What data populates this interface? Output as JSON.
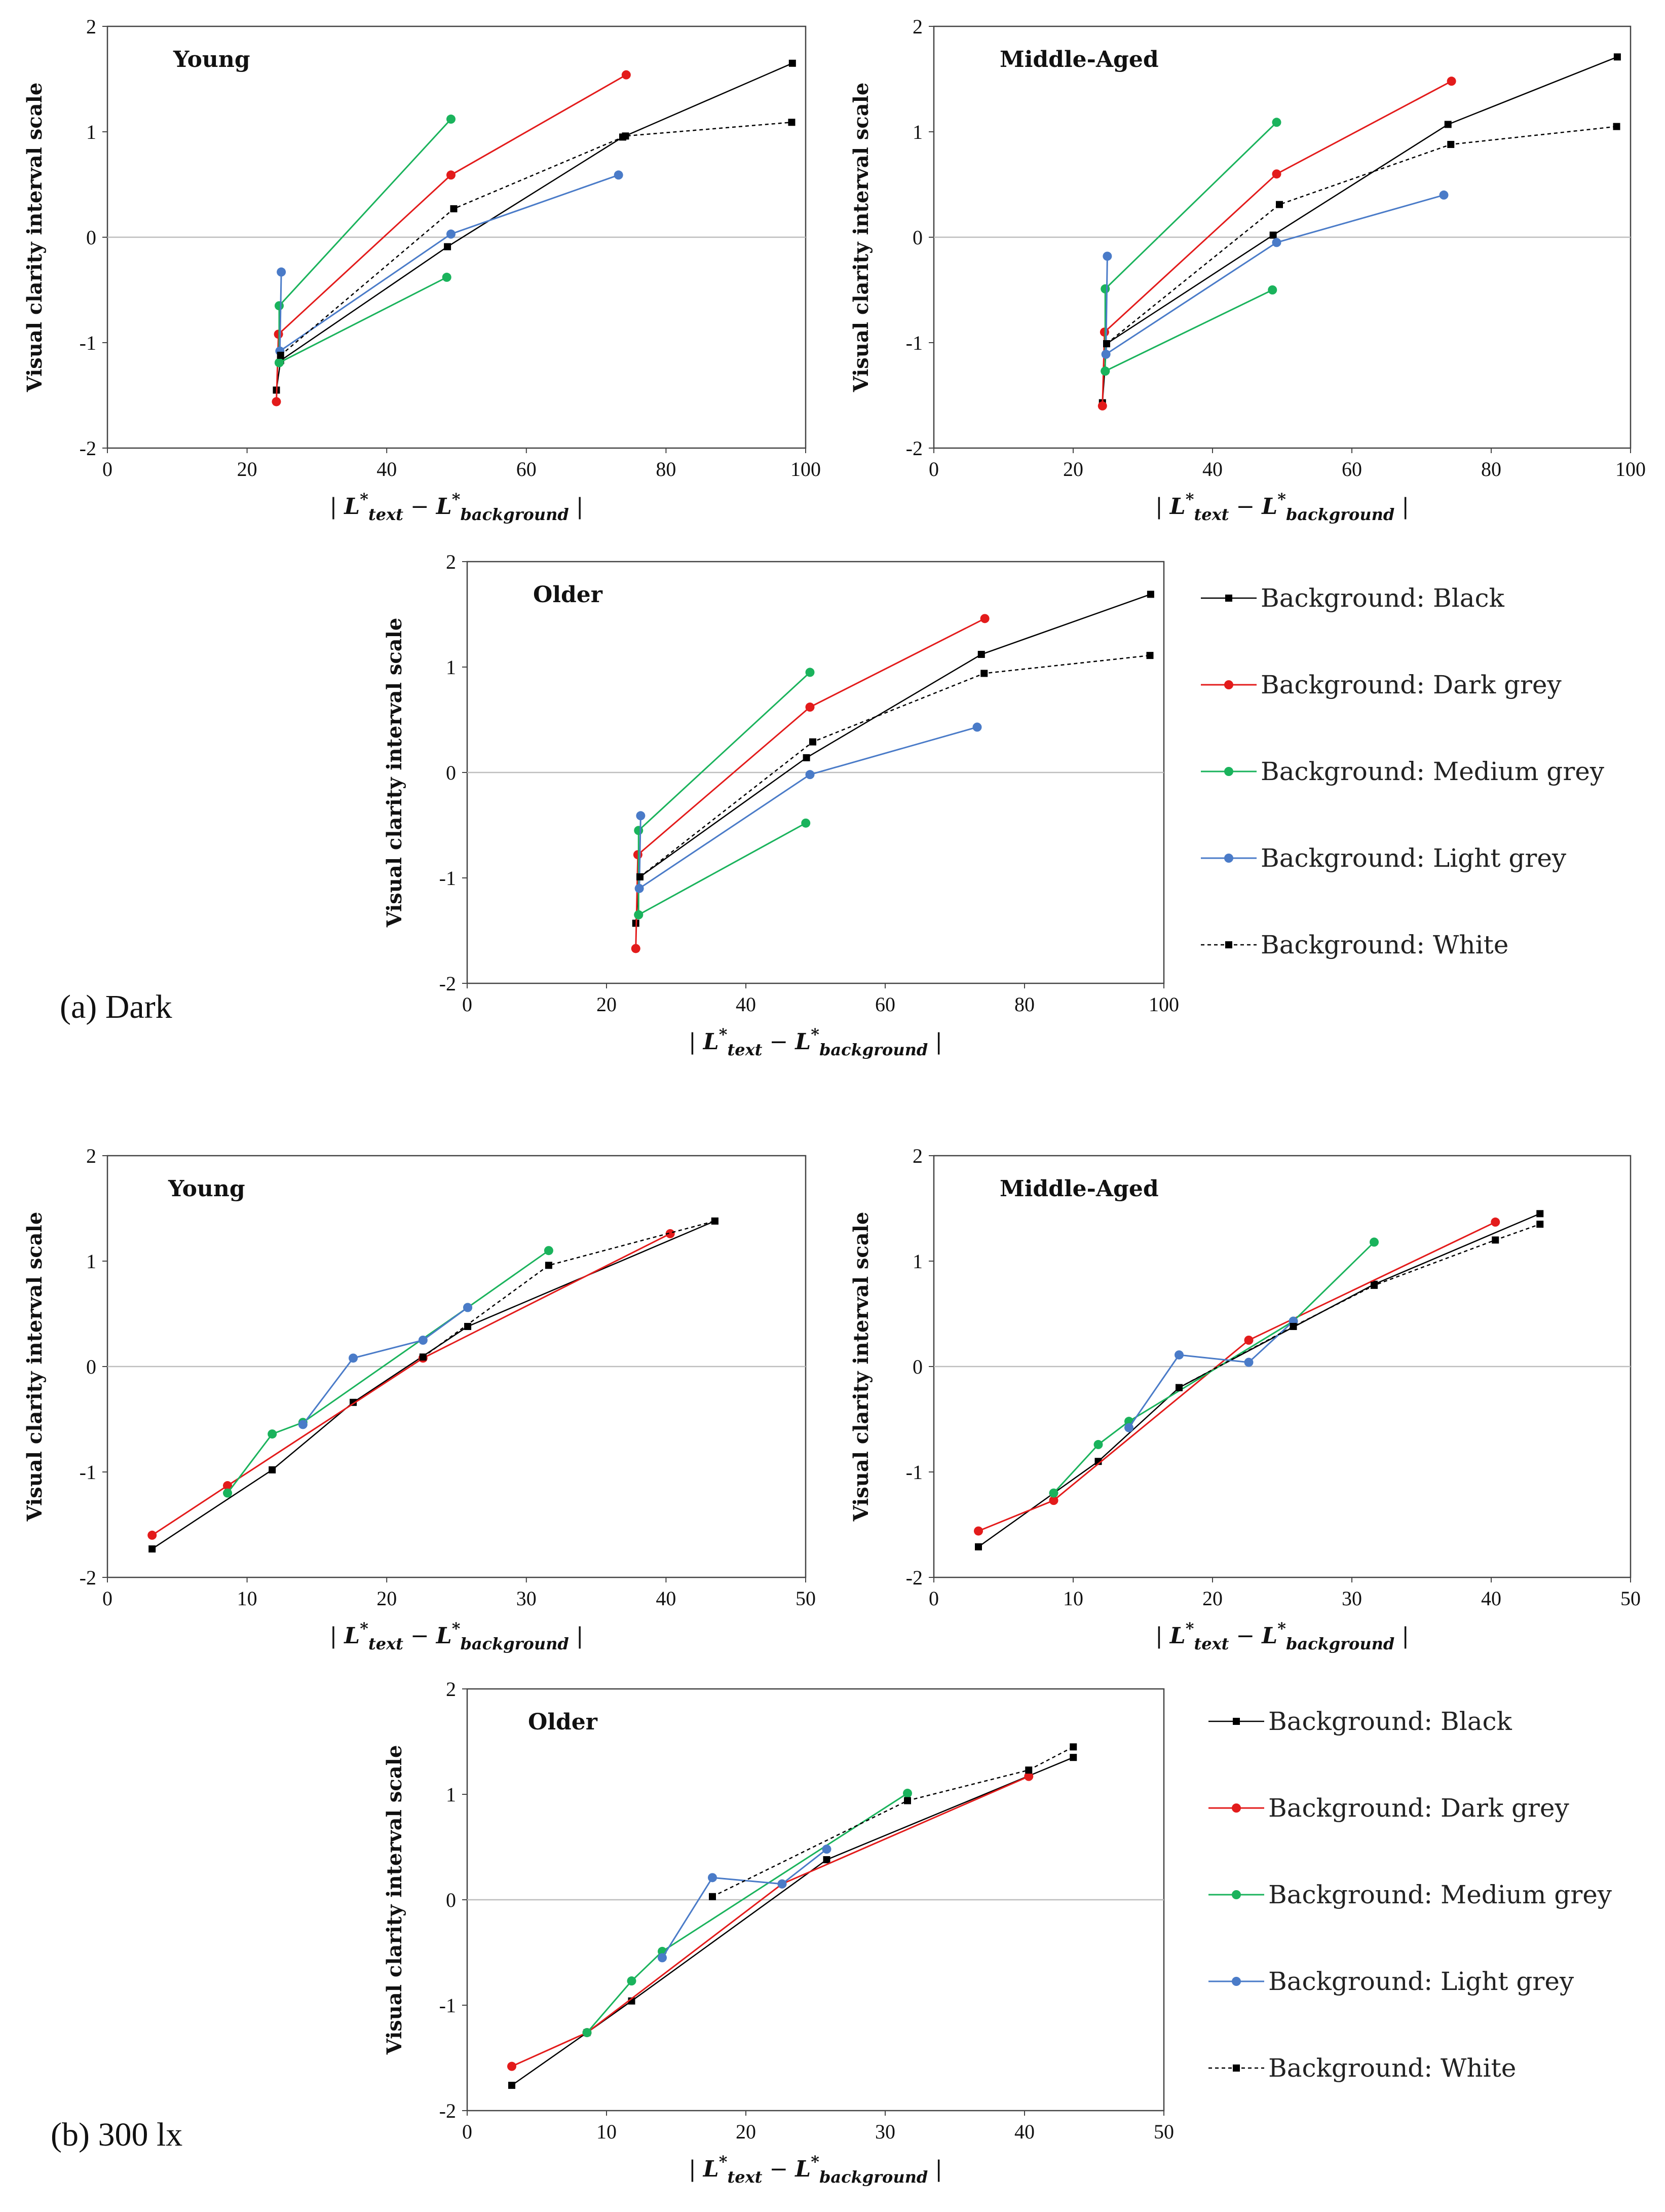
{
  "sections": [
    {
      "label": "(a) Dark"
    },
    {
      "label": "(b) 300 lx"
    }
  ],
  "legend": {
    "items": [
      {
        "label": "Background: Black",
        "color": "#000000",
        "marker": "square",
        "dashed": false
      },
      {
        "label": "Background: Dark grey",
        "color": "#e31b1b",
        "marker": "circle",
        "dashed": false
      },
      {
        "label": "Background: Medium grey",
        "color": "#1ab35c",
        "marker": "circle",
        "dashed": false
      },
      {
        "label": "Background: Light grey",
        "color": "#4a7bc8",
        "marker": "circle",
        "dashed": false
      },
      {
        "label": "Background: White",
        "color": "#000000",
        "marker": "square",
        "dashed": true
      }
    ]
  },
  "axes": {
    "ylabel": "Visual clarity interval scale",
    "xlabel_prefix": "| ",
    "xlabel_L1": "L",
    "xlabel_sub1": "text",
    "xlabel_minus": " − ",
    "xlabel_L2": "L",
    "xlabel_sub2": "background",
    "xlabel_suffix": " |",
    "star": "*"
  },
  "chart_data": [
    {
      "type": "line",
      "section": "(a) Dark",
      "title": "Young",
      "xlim": [
        0,
        100
      ],
      "ylim": [
        -2,
        2
      ],
      "xticks": [
        0,
        20,
        40,
        60,
        80,
        100
      ],
      "yticks": [
        -2,
        -1,
        0,
        1,
        2
      ],
      "series": [
        {
          "name": "Background: Black",
          "points": [
            [
              24.2,
              -1.45
            ],
            [
              24.8,
              -1.17
            ],
            [
              48.7,
              -0.09
            ],
            [
              73.8,
              0.95
            ],
            [
              98.1,
              1.65
            ]
          ]
        },
        {
          "name": "Background: Dark grey",
          "points": [
            [
              24.2,
              -1.56
            ],
            [
              24.5,
              -0.92
            ],
            [
              49.2,
              0.59
            ],
            [
              74.3,
              1.54
            ]
          ]
        },
        {
          "name": "Background: Medium grey",
          "points": [
            [
              24.6,
              -1.19
            ],
            [
              24.6,
              -0.65
            ],
            [
              49.2,
              1.12
            ]
          ],
          "extra": [
            [
              24.6,
              -1.19
            ],
            [
              48.6,
              -0.38
            ]
          ]
        },
        {
          "name": "Background: Light grey",
          "points": [
            [
              24.9,
              -0.33
            ],
            [
              24.7,
              -1.08
            ],
            [
              49.2,
              0.03
            ],
            [
              73.2,
              0.59
            ]
          ]
        },
        {
          "name": "Background: White",
          "points": [
            [
              24.8,
              -1.12
            ],
            [
              49.6,
              0.27
            ],
            [
              74.2,
              0.96
            ],
            [
              98.0,
              1.09
            ]
          ]
        }
      ]
    },
    {
      "type": "line",
      "section": "(a) Dark",
      "title": "Middle-Aged",
      "xlim": [
        0,
        100
      ],
      "ylim": [
        -2,
        2
      ],
      "xticks": [
        0,
        20,
        40,
        60,
        80,
        100
      ],
      "yticks": [
        -2,
        -1,
        0,
        1,
        2
      ],
      "series": [
        {
          "name": "Background: Black",
          "points": [
            [
              24.2,
              -1.57
            ],
            [
              24.8,
              -1.01
            ],
            [
              48.7,
              0.02
            ],
            [
              73.8,
              1.07
            ],
            [
              98.1,
              1.71
            ]
          ]
        },
        {
          "name": "Background: Dark grey",
          "points": [
            [
              24.2,
              -1.6
            ],
            [
              24.5,
              -0.9
            ],
            [
              49.2,
              0.6
            ],
            [
              74.3,
              1.48
            ]
          ]
        },
        {
          "name": "Background: Medium grey",
          "points": [
            [
              24.6,
              -1.27
            ],
            [
              24.6,
              -0.49
            ],
            [
              49.2,
              1.09
            ]
          ],
          "extra": [
            [
              24.6,
              -1.27
            ],
            [
              48.6,
              -0.5
            ]
          ]
        },
        {
          "name": "Background: Light grey",
          "points": [
            [
              24.9,
              -0.18
            ],
            [
              24.7,
              -1.11
            ],
            [
              49.2,
              -0.05
            ],
            [
              73.2,
              0.4
            ]
          ]
        },
        {
          "name": "Background: White",
          "points": [
            [
              24.8,
              -1.01
            ],
            [
              49.6,
              0.31
            ],
            [
              74.2,
              0.88
            ],
            [
              98.0,
              1.05
            ]
          ]
        }
      ]
    },
    {
      "type": "line",
      "section": "(a) Dark",
      "title": "Older",
      "xlim": [
        0,
        100
      ],
      "ylim": [
        -2,
        2
      ],
      "xticks": [
        0,
        20,
        40,
        60,
        80,
        100
      ],
      "yticks": [
        -2,
        -1,
        0,
        1,
        2
      ],
      "series": [
        {
          "name": "Background: Black",
          "points": [
            [
              24.2,
              -1.43
            ],
            [
              24.8,
              -0.99
            ],
            [
              48.7,
              0.14
            ],
            [
              73.8,
              1.12
            ],
            [
              98.1,
              1.69
            ]
          ]
        },
        {
          "name": "Background: Dark grey",
          "points": [
            [
              24.2,
              -1.67
            ],
            [
              24.5,
              -0.78
            ],
            [
              49.2,
              0.62
            ],
            [
              74.3,
              1.46
            ]
          ]
        },
        {
          "name": "Background: Medium grey",
          "points": [
            [
              24.6,
              -1.35
            ],
            [
              24.6,
              -0.55
            ],
            [
              49.2,
              0.95
            ]
          ],
          "extra": [
            [
              24.6,
              -1.35
            ],
            [
              48.6,
              -0.48
            ]
          ]
        },
        {
          "name": "Background: Light grey",
          "points": [
            [
              24.9,
              -0.41
            ],
            [
              24.7,
              -1.1
            ],
            [
              49.2,
              -0.02
            ],
            [
              73.2,
              0.43
            ]
          ]
        },
        {
          "name": "Background: White",
          "points": [
            [
              24.8,
              -0.99
            ],
            [
              49.6,
              0.29
            ],
            [
              74.2,
              0.94
            ],
            [
              98.0,
              1.11
            ]
          ]
        }
      ]
    },
    {
      "type": "line",
      "section": "(b) 300 lx",
      "title": "Young",
      "xlim": [
        0,
        50
      ],
      "ylim": [
        -2,
        2
      ],
      "xticks": [
        0,
        10,
        20,
        30,
        40,
        50
      ],
      "yticks": [
        -2,
        -1,
        0,
        1,
        2
      ],
      "series": [
        {
          "name": "Background: Black",
          "points": [
            [
              3.2,
              -1.73
            ],
            [
              11.8,
              -0.98
            ],
            [
              17.6,
              -0.34
            ],
            [
              25.8,
              0.38
            ],
            [
              43.5,
              1.38
            ]
          ]
        },
        {
          "name": "Background: Dark grey",
          "points": [
            [
              3.2,
              -1.6
            ],
            [
              8.6,
              -1.13
            ],
            [
              22.6,
              0.08
            ],
            [
              40.3,
              1.26
            ]
          ]
        },
        {
          "name": "Background: Medium grey",
          "points": [
            [
              8.6,
              -1.2
            ],
            [
              11.8,
              -0.64
            ],
            [
              14.0,
              -0.53
            ],
            [
              25.8,
              0.56
            ],
            [
              31.6,
              1.1
            ]
          ]
        },
        {
          "name": "Background: Light grey",
          "points": [
            [
              14.0,
              -0.55
            ],
            [
              17.6,
              0.08
            ],
            [
              22.6,
              0.25
            ],
            [
              25.8,
              0.56
            ]
          ]
        },
        {
          "name": "Background: White",
          "points": [
            [
              22.6,
              0.09
            ],
            [
              31.6,
              0.96
            ],
            [
              43.5,
              1.38
            ]
          ]
        }
      ]
    },
    {
      "type": "line",
      "section": "(b) 300 lx",
      "title": "Middle-Aged",
      "xlim": [
        0,
        50
      ],
      "ylim": [
        -2,
        2
      ],
      "xticks": [
        0,
        10,
        20,
        30,
        40,
        50
      ],
      "yticks": [
        -2,
        -1,
        0,
        1,
        2
      ],
      "series": [
        {
          "name": "Background: Black",
          "points": [
            [
              3.2,
              -1.71
            ],
            [
              11.8,
              -0.9
            ],
            [
              17.6,
              -0.2
            ],
            [
              31.6,
              0.78
            ],
            [
              43.5,
              1.45
            ]
          ]
        },
        {
          "name": "Background: Dark grey",
          "points": [
            [
              3.2,
              -1.56
            ],
            [
              8.6,
              -1.27
            ],
            [
              22.6,
              0.25
            ],
            [
              40.3,
              1.37
            ]
          ]
        },
        {
          "name": "Background: Medium grey",
          "points": [
            [
              8.6,
              -1.2
            ],
            [
              11.8,
              -0.74
            ],
            [
              14.0,
              -0.52
            ],
            [
              25.8,
              0.43
            ],
            [
              31.6,
              1.18
            ]
          ]
        },
        {
          "name": "Background: Light grey",
          "points": [
            [
              14.0,
              -0.58
            ],
            [
              17.6,
              0.11
            ],
            [
              22.6,
              0.04
            ],
            [
              25.8,
              0.43
            ]
          ]
        },
        {
          "name": "Background: White",
          "points": [
            [
              17.6,
              -0.2
            ],
            [
              25.8,
              0.38
            ],
            [
              31.6,
              0.77
            ],
            [
              40.3,
              1.2
            ],
            [
              43.5,
              1.35
            ]
          ]
        }
      ]
    },
    {
      "type": "line",
      "section": "(b) 300 lx",
      "title": "Older",
      "xlim": [
        0,
        50
      ],
      "ylim": [
        -2,
        2
      ],
      "xticks": [
        0,
        10,
        20,
        30,
        40,
        50
      ],
      "yticks": [
        -2,
        -1,
        0,
        1,
        2
      ],
      "series": [
        {
          "name": "Background: Black",
          "points": [
            [
              3.2,
              -1.76
            ],
            [
              8.6,
              -1.26
            ],
            [
              11.8,
              -0.96
            ],
            [
              25.8,
              0.38
            ],
            [
              43.5,
              1.35
            ]
          ]
        },
        {
          "name": "Background: Dark grey",
          "points": [
            [
              3.2,
              -1.58
            ],
            [
              8.6,
              -1.26
            ],
            [
              22.6,
              0.15
            ],
            [
              40.3,
              1.17
            ]
          ]
        },
        {
          "name": "Background: Medium grey",
          "points": [
            [
              8.6,
              -1.26
            ],
            [
              11.8,
              -0.77
            ],
            [
              14.0,
              -0.49
            ],
            [
              31.6,
              1.01
            ]
          ]
        },
        {
          "name": "Background: Light grey",
          "points": [
            [
              14.0,
              -0.55
            ],
            [
              17.6,
              0.21
            ],
            [
              22.6,
              0.15
            ],
            [
              25.8,
              0.48
            ]
          ]
        },
        {
          "name": "Background: White",
          "points": [
            [
              17.6,
              0.03
            ],
            [
              31.6,
              0.94
            ],
            [
              40.3,
              1.23
            ],
            [
              43.5,
              1.45
            ]
          ]
        }
      ]
    }
  ]
}
